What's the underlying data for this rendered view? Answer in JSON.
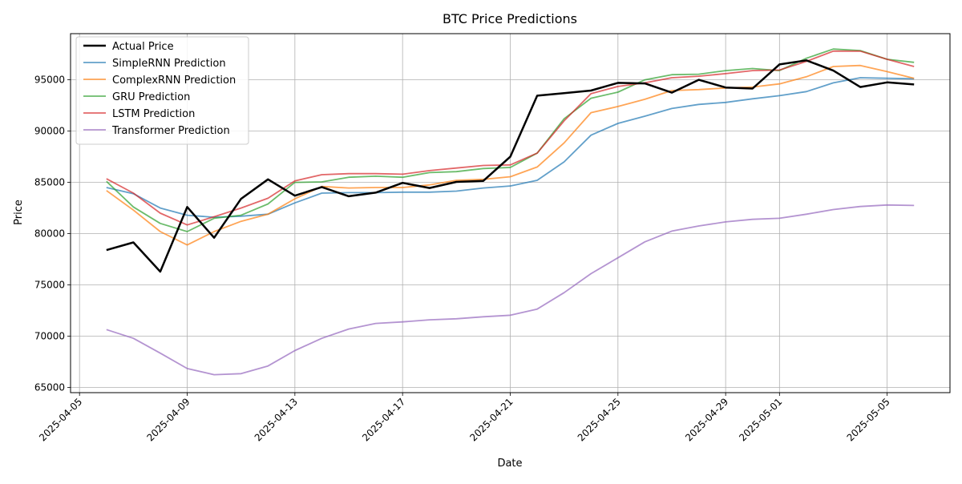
{
  "chart_data": {
    "type": "line",
    "title": "BTC Price Predictions",
    "xlabel": "Date",
    "ylabel": "Price",
    "grid": true,
    "legend_position": "top-left",
    "xlim": [
      "2025-04-04 16:00",
      "2025-05-07 08:00"
    ],
    "ylim": [
      64500,
      99500
    ],
    "x_ticks": [
      "2025-04-05",
      "2025-04-09",
      "2025-04-13",
      "2025-04-17",
      "2025-04-21",
      "2025-04-25",
      "2025-04-29",
      "2025-05-01",
      "2025-05-05"
    ],
    "y_ticks": [
      "65000",
      "70000",
      "75000",
      "80000",
      "85000",
      "90000",
      "95000"
    ],
    "x": [
      "2025-04-06",
      "2025-04-07",
      "2025-04-08",
      "2025-04-09",
      "2025-04-10",
      "2025-04-11",
      "2025-04-12",
      "2025-04-13",
      "2025-04-14",
      "2025-04-15",
      "2025-04-16",
      "2025-04-17",
      "2025-04-18",
      "2025-04-19",
      "2025-04-20",
      "2025-04-21",
      "2025-04-22",
      "2025-04-23",
      "2025-04-24",
      "2025-04-25",
      "2025-04-26",
      "2025-04-27",
      "2025-04-28",
      "2025-04-29",
      "2025-04-30",
      "2025-05-01",
      "2025-05-02",
      "2025-05-03",
      "2025-05-04",
      "2025-05-05",
      "2025-05-06"
    ],
    "series": [
      {
        "name": "Actual Price",
        "color": "#000000",
        "width": 2.5,
        "opacity": 1,
        "values": [
          78400,
          79150,
          76300,
          82600,
          79600,
          83400,
          85300,
          83700,
          84550,
          83650,
          84000,
          84950,
          84450,
          85050,
          85150,
          87500,
          93450,
          93700,
          93950,
          94700,
          94650,
          93750,
          95000,
          94250,
          94150,
          96500,
          96900,
          95900,
          94300,
          94750,
          94550
        ]
      },
      {
        "name": "SimpleRNN Prediction",
        "color": "#1f77b4",
        "width": 1.8,
        "opacity": 0.7,
        "values": [
          84500,
          83900,
          82500,
          81800,
          81600,
          81700,
          81900,
          83000,
          83950,
          84000,
          84000,
          84050,
          84050,
          84150,
          84450,
          84650,
          85200,
          87000,
          89600,
          90750,
          91450,
          92200,
          92600,
          92800,
          93150,
          93450,
          93850,
          94700,
          95200,
          95150,
          95100
        ]
      },
      {
        "name": "ComplexRNN Prediction",
        "color": "#ff7f0e",
        "width": 1.8,
        "opacity": 0.7,
        "values": [
          84200,
          82300,
          80200,
          78900,
          80200,
          81200,
          81900,
          83400,
          84600,
          84450,
          84500,
          84500,
          84750,
          85200,
          85300,
          85550,
          86500,
          88850,
          91800,
          92400,
          93100,
          93950,
          94050,
          94200,
          94300,
          94600,
          95300,
          96300,
          96400,
          95800,
          95150
        ]
      },
      {
        "name": "GRU Prediction",
        "color": "#2ca02c",
        "width": 1.8,
        "opacity": 0.7,
        "values": [
          85100,
          82600,
          81000,
          80200,
          81500,
          81800,
          82900,
          85000,
          85050,
          85500,
          85600,
          85500,
          85950,
          86050,
          86350,
          86450,
          87850,
          91200,
          93200,
          93800,
          95000,
          95500,
          95550,
          95900,
          96100,
          95900,
          97100,
          98000,
          97850,
          97000,
          96700
        ]
      },
      {
        "name": "LSTM Prediction",
        "color": "#d62728",
        "width": 1.8,
        "opacity": 0.7,
        "values": [
          85350,
          83950,
          82000,
          80850,
          81650,
          82500,
          83450,
          85150,
          85750,
          85850,
          85850,
          85800,
          86150,
          86400,
          86650,
          86700,
          87850,
          91000,
          93650,
          94350,
          94700,
          95200,
          95350,
          95600,
          95900,
          95950,
          96800,
          97800,
          97800,
          97000,
          96300
        ]
      },
      {
        "name": "Transformer Prediction",
        "color": "#9467bd",
        "width": 1.8,
        "opacity": 0.7,
        "values": [
          70650,
          69800,
          68350,
          66850,
          66250,
          66350,
          67100,
          68600,
          69800,
          70700,
          71250,
          71400,
          71600,
          71700,
          71900,
          72050,
          72650,
          74250,
          76100,
          77650,
          79200,
          80250,
          80750,
          81150,
          81400,
          81500,
          81900,
          82350,
          82650,
          82800,
          82750
        ]
      }
    ]
  }
}
